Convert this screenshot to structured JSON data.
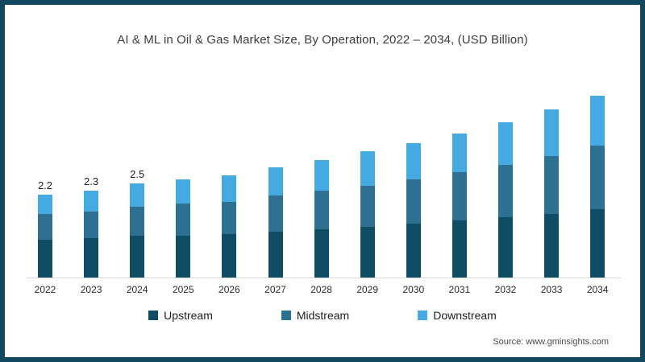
{
  "page": {
    "title": "AI & ML in Oil & Gas Market Size, By Operation, 2022 – 2034, (USD Billion)",
    "source": "Source: www.gminsights.com",
    "frame_color": "#11475f",
    "background_color": "#ffffff"
  },
  "chart_data": {
    "type": "bar",
    "stacked": true,
    "title": "AI & ML in Oil & Gas Market Size, By Operation, 2022 – 2034, (USD Billion)",
    "units": "USD Billion",
    "xlabel": "",
    "ylabel": "",
    "ylim": [
      0,
      5
    ],
    "grid": false,
    "legend_position": "bottom",
    "axis_line_color": "#d8d8d8",
    "categories": [
      "2022",
      "2023",
      "2024",
      "2025",
      "2026",
      "2027",
      "2028",
      "2029",
      "2030",
      "2031",
      "2032",
      "2033",
      "2034"
    ],
    "series": [
      {
        "name": "Upstream",
        "color": "#0e4d63",
        "values": [
          1.0,
          1.04,
          1.1,
          1.11,
          1.14,
          1.22,
          1.28,
          1.33,
          1.42,
          1.51,
          1.6,
          1.69,
          1.8
        ]
      },
      {
        "name": "Midstream",
        "color": "#2e7092",
        "values": [
          0.68,
          0.71,
          0.77,
          0.85,
          0.87,
          0.94,
          1.02,
          1.1,
          1.18,
          1.27,
          1.38,
          1.52,
          1.68
        ]
      },
      {
        "name": "Downstream",
        "color": "#45a9e2",
        "values": [
          0.52,
          0.55,
          0.63,
          0.64,
          0.69,
          0.75,
          0.8,
          0.9,
          0.95,
          1.03,
          1.12,
          1.24,
          1.32
        ]
      }
    ],
    "totals": [
      2.2,
      2.3,
      2.5,
      2.6,
      2.7,
      2.9,
      3.1,
      3.3,
      3.5,
      3.8,
      4.1,
      4.4,
      4.8
    ],
    "data_labels": [
      "2.2",
      "2.3",
      "2.5",
      "",
      "",
      "",
      "",
      "",
      "",
      "",
      "",
      "",
      ""
    ]
  }
}
